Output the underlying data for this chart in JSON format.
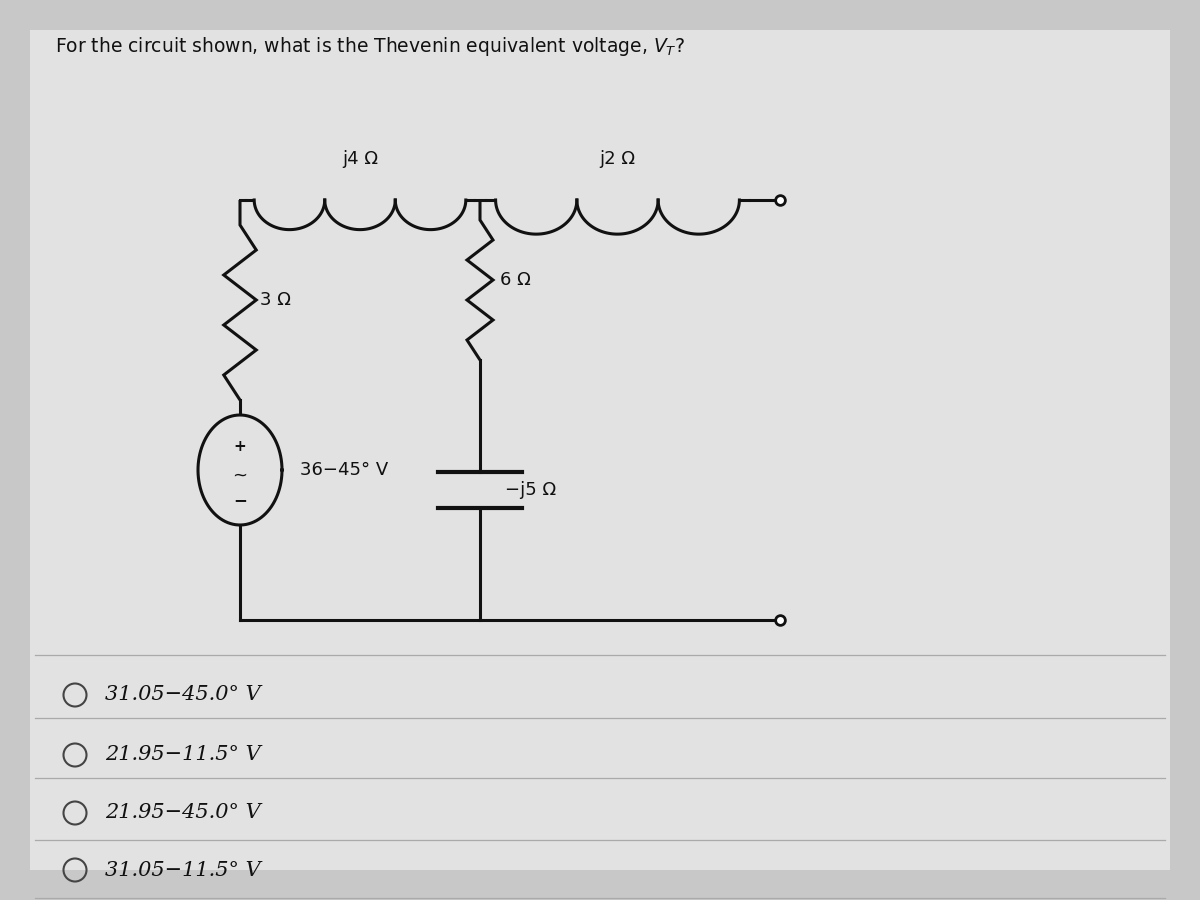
{
  "title": "For the circuit shown, what is the Thevenin equivalent voltage, $V_T$?",
  "title_fontsize": 13.5,
  "bg_outer": "#c8c8c8",
  "bg_panel": "#e2e2e2",
  "wire_color": "#111111",
  "comp_color": "#111111",
  "options": [
    "31.05−45.0° V",
    "21.95−11.5° V",
    "21.95−45.0° V",
    "31.05−11.5° V"
  ],
  "option_fontsize": 15,
  "circuit": {
    "inductor_j4_label": "j4 Ω",
    "inductor_j2_label": "j2 Ω",
    "resistor_3_label": "3 Ω",
    "resistor_6_label": "6 Ω",
    "capacitor_j5_label": "−j5 Ω",
    "source_label": "36−45° V"
  }
}
